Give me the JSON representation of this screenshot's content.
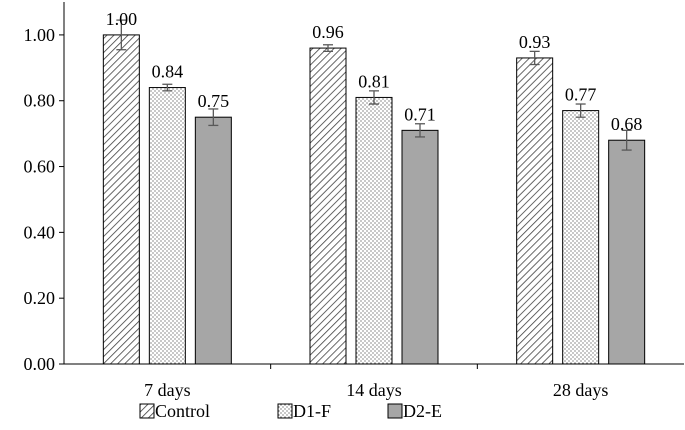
{
  "chart_data": {
    "type": "bar",
    "categories": [
      "7 days",
      "14 days",
      "28 days"
    ],
    "series": [
      {
        "name": "Control",
        "values": [
          1.0,
          0.96,
          0.93
        ],
        "errors": [
          0.045,
          0.01,
          0.02
        ],
        "labels": [
          "1.00",
          "0.96",
          "0.93"
        ],
        "pattern": "diagonal",
        "color": "#ffffff"
      },
      {
        "name": "D1-F",
        "values": [
          0.84,
          0.81,
          0.77
        ],
        "errors": [
          0.01,
          0.02,
          0.02
        ],
        "labels": [
          "0.84",
          "0.81",
          "0.77"
        ],
        "pattern": "dots",
        "color": "#ffffff"
      },
      {
        "name": "D2-E",
        "values": [
          0.75,
          0.71,
          0.68
        ],
        "errors": [
          0.025,
          0.02,
          0.03
        ],
        "labels": [
          "0.75",
          "0.71",
          "0.68"
        ],
        "pattern": "solid",
        "color": "#a6a6a6"
      }
    ],
    "ylim": [
      0,
      1.1
    ],
    "yticks": [
      "0.00",
      "0.20",
      "0.40",
      "0.60",
      "0.80",
      "1.00"
    ],
    "title": "",
    "xlabel": "",
    "ylabel": "",
    "legend_position": "bottom",
    "grid": false
  }
}
